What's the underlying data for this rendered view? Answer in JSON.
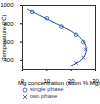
{
  "chart_data": {
    "type": "scatter",
    "y_label": "Temperature (°C)",
    "x_label": "Mg concentration (atom % Mg)",
    "xlim": [
      0,
      30
    ],
    "xticks": [
      0,
      10,
      20,
      30
    ],
    "ylim": [
      300,
      1000
    ],
    "yticks": [
      400,
      600,
      800,
      1000
    ],
    "curve": {
      "type": "line",
      "color": "#1f4e9c",
      "line_style": "solid",
      "x": [
        2,
        8,
        14,
        20,
        24,
        26,
        26,
        24,
        20
      ],
      "values": [
        960,
        880,
        800,
        720,
        640,
        560,
        480,
        400,
        340
      ]
    },
    "series": [
      {
        "name": "single phase",
        "marker": "circle",
        "color": "#1f4e9c",
        "x": [
          4,
          10,
          16,
          22,
          25
        ],
        "values": [
          930,
          860,
          770,
          680,
          600
        ]
      },
      {
        "name": "two phase",
        "marker": "cross",
        "color": "#1f4e9c",
        "x": [
          26,
          25,
          22
        ],
        "values": [
          520,
          430,
          370
        ]
      }
    ]
  }
}
